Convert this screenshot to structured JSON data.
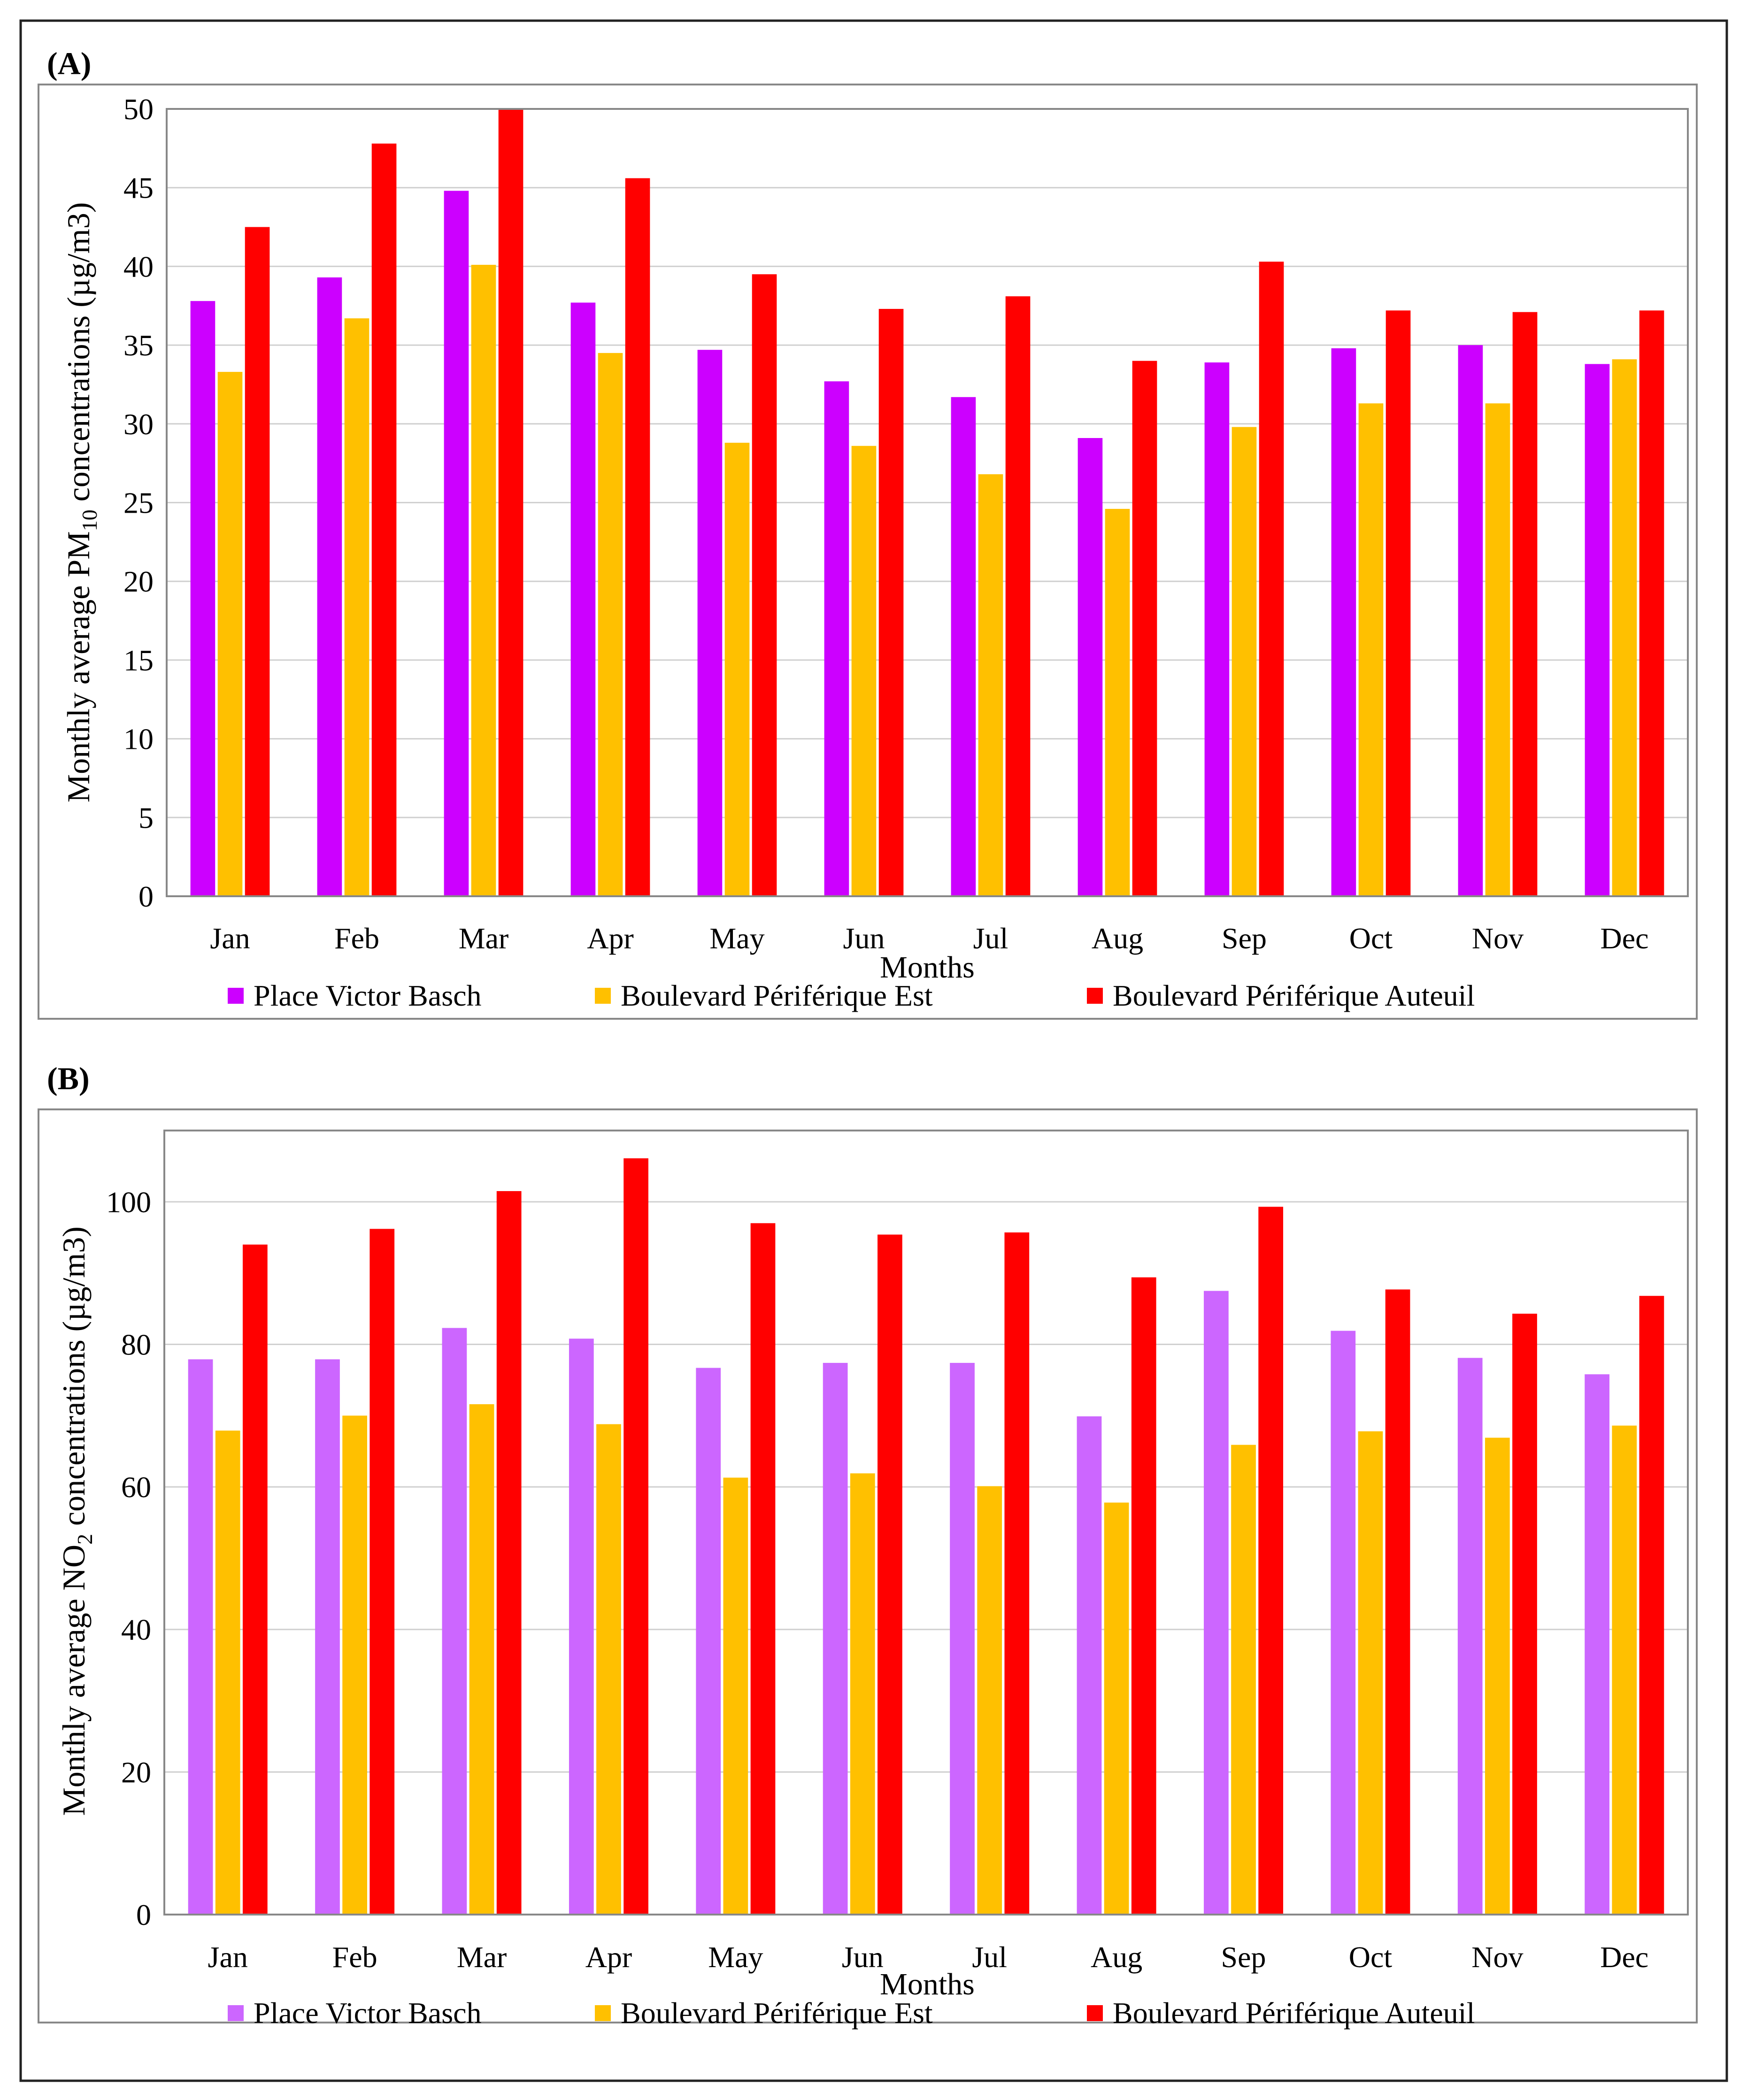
{
  "figure": {
    "panels": [
      {
        "tag": "(A)",
        "ylabel_pre": "Monthly  average  PM",
        "ylabel_sub": "10",
        "ylabel_post": " concentrations (µg/m3)",
        "xlabel": "Months"
      },
      {
        "tag": "(B)",
        "ylabel_pre": "Monthly  average  NO",
        "ylabel_sub": "2",
        "ylabel_post": " concentrations (µg/m3)",
        "xlabel": "Months"
      }
    ]
  },
  "chart_data": [
    {
      "type": "bar",
      "title": "(A)",
      "xlabel": "Months",
      "ylabel": "Monthly average PM10 concentrations (µg/m3)",
      "ylim": [
        0,
        50
      ],
      "yticks": [
        0,
        5,
        10,
        15,
        20,
        25,
        30,
        35,
        40,
        45,
        50
      ],
      "grid": true,
      "legend_position": "bottom",
      "categories": [
        "Jan",
        "Feb",
        "Mar",
        "Apr",
        "May",
        "Jun",
        "Jul",
        "Aug",
        "Sep",
        "Oct",
        "Nov",
        "Dec"
      ],
      "series": [
        {
          "name": "Place Victor Basch",
          "color": "#cc00ff",
          "values": [
            37.8,
            39.3,
            44.8,
            37.7,
            34.7,
            32.7,
            31.7,
            29.1,
            33.9,
            34.8,
            35.0,
            33.8
          ]
        },
        {
          "name": "Boulevard Périférique Est",
          "color": "#ffc000",
          "values": [
            33.3,
            36.7,
            40.1,
            34.5,
            28.8,
            28.6,
            26.8,
            24.6,
            29.8,
            31.3,
            31.3,
            34.1
          ]
        },
        {
          "name": "Boulevard Périférique Auteuil",
          "color": "#ff0000",
          "values": [
            42.5,
            47.8,
            50.0,
            45.6,
            39.5,
            37.3,
            38.1,
            34.0,
            40.3,
            37.2,
            37.1,
            37.2
          ]
        }
      ]
    },
    {
      "type": "bar",
      "title": "(B)",
      "xlabel": "Months",
      "ylabel": "Monthly average NO2 concentrations (µg/m3)",
      "ylim": [
        0,
        110
      ],
      "yticks": [
        0,
        20,
        40,
        60,
        80,
        100
      ],
      "grid": true,
      "legend_position": "bottom",
      "categories": [
        "Jan",
        "Feb",
        "Mar",
        "Apr",
        "May",
        "Jun",
        "Jul",
        "Aug",
        "Sep",
        "Oct",
        "Nov",
        "Dec"
      ],
      "series": [
        {
          "name": "Place Victor Basch",
          "color": "#cc66ff",
          "values": [
            77.9,
            77.9,
            82.3,
            80.8,
            76.7,
            77.4,
            77.4,
            69.9,
            87.5,
            81.9,
            78.1,
            75.8
          ]
        },
        {
          "name": "Boulevard Périférique Est",
          "color": "#ffc000",
          "values": [
            67.9,
            70.0,
            71.6,
            68.8,
            61.3,
            61.9,
            60.1,
            57.8,
            65.9,
            67.8,
            66.9,
            68.6
          ]
        },
        {
          "name": "Boulevard Périférique Auteuil",
          "color": "#ff0000",
          "values": [
            94.0,
            96.2,
            101.5,
            106.1,
            97.0,
            95.4,
            95.7,
            89.4,
            99.3,
            87.7,
            84.3,
            86.8
          ]
        }
      ]
    }
  ]
}
